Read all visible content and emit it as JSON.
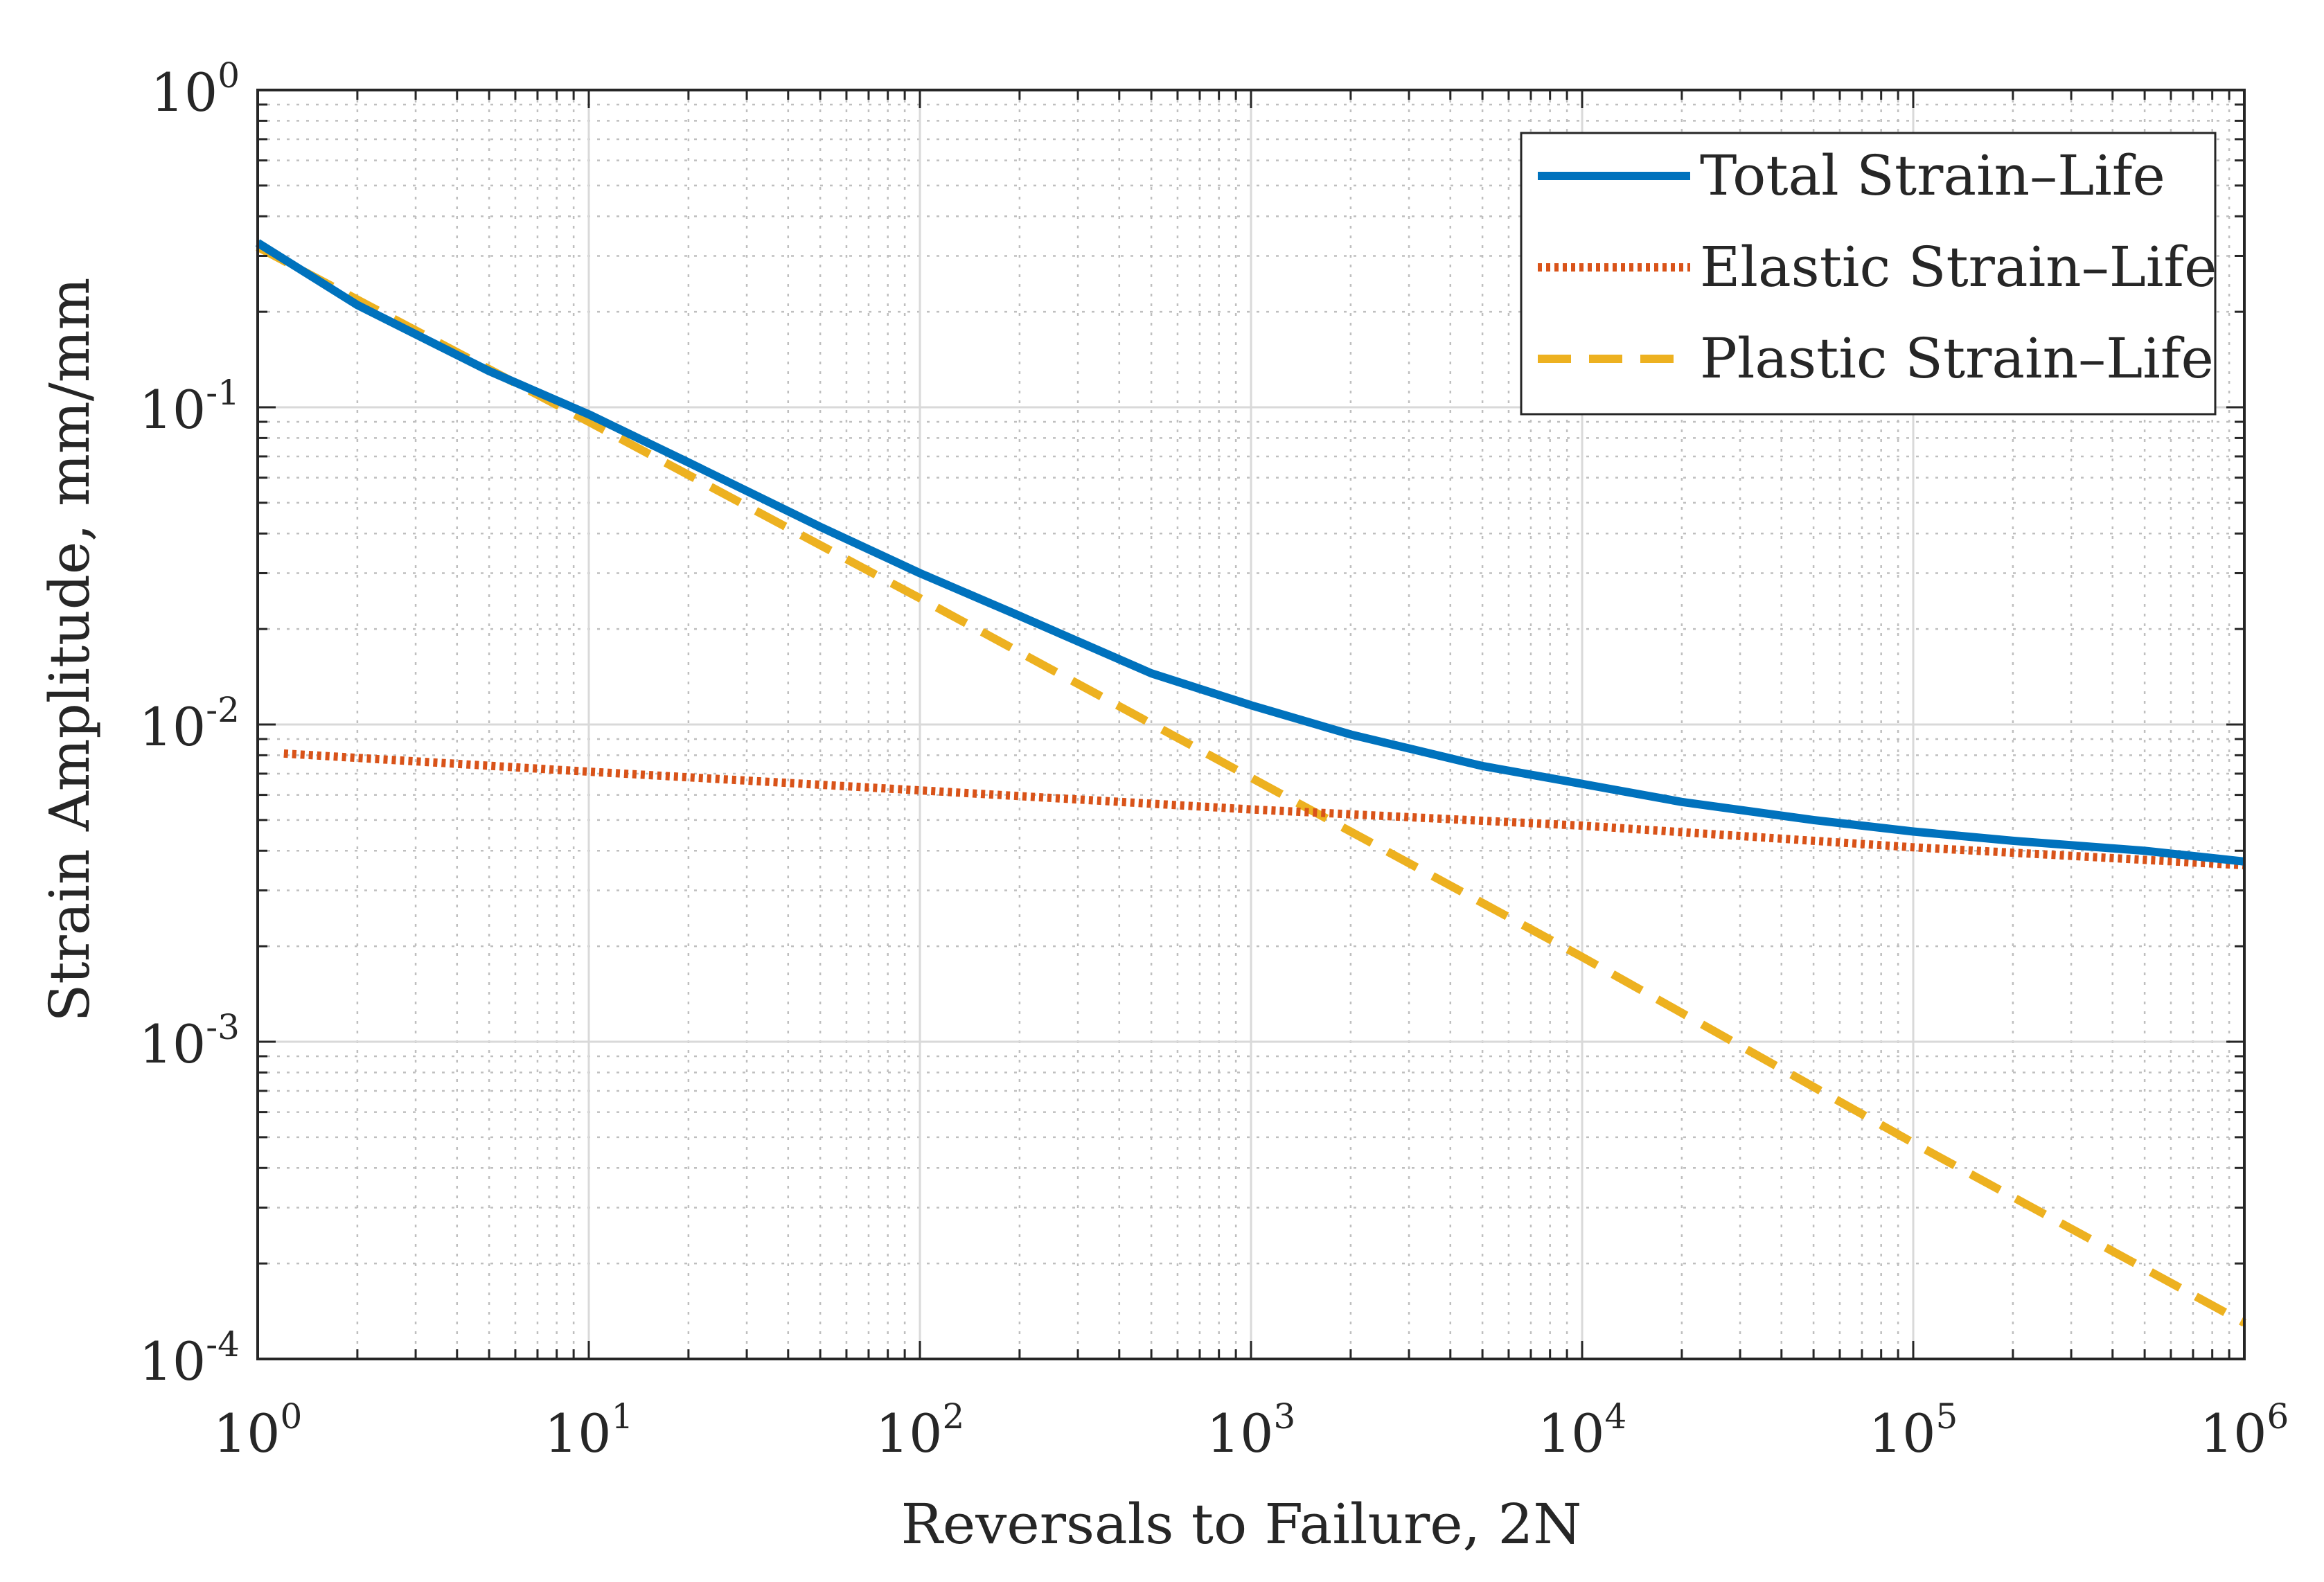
{
  "chart_data": {
    "type": "line",
    "xscale": "log",
    "yscale": "log",
    "xlim": [
      1,
      1000000
    ],
    "ylim": [
      0.0001,
      1
    ],
    "xlabel": "Reversals to Failure, 2N",
    "ylabel": "Strain Amplitude, mm/mm",
    "grid": true,
    "minor_grid": true,
    "legend_location": "top-right",
    "x_ticks": [
      {
        "value": 1,
        "base": "10",
        "exp": "0"
      },
      {
        "value": 10,
        "base": "10",
        "exp": "1"
      },
      {
        "value": 100,
        "base": "10",
        "exp": "2"
      },
      {
        "value": 1000,
        "base": "10",
        "exp": "3"
      },
      {
        "value": 10000,
        "base": "10",
        "exp": "4"
      },
      {
        "value": 100000,
        "base": "10",
        "exp": "5"
      },
      {
        "value": 1000000,
        "base": "10",
        "exp": "6"
      }
    ],
    "y_ticks": [
      {
        "value": 1,
        "base": "10",
        "exp": "0"
      },
      {
        "value": 0.1,
        "base": "10",
        "exp": "-1"
      },
      {
        "value": 0.01,
        "base": "10",
        "exp": "-2"
      },
      {
        "value": 0.001,
        "base": "10",
        "exp": "-3"
      },
      {
        "value": 0.0001,
        "base": "10",
        "exp": "-4"
      }
    ],
    "series": [
      {
        "name": "Total Strain–Life",
        "color": "#0072BD",
        "style": "solid",
        "x": [
          1,
          2,
          5,
          10,
          20,
          50,
          100,
          200,
          500,
          1000,
          2000,
          5000,
          10000,
          20000,
          50000,
          100000,
          200000,
          500000,
          1000000
        ],
        "y": [
          0.33,
          0.21,
          0.13,
          0.095,
          0.067,
          0.042,
          0.03,
          0.022,
          0.0145,
          0.0115,
          0.0093,
          0.0074,
          0.0065,
          0.0057,
          0.005,
          0.0046,
          0.0043,
          0.004,
          0.0037
        ]
      },
      {
        "name": "Elastic Strain–Life",
        "color": "#D95319",
        "style": "dotted",
        "x": [
          1.2,
          10,
          100,
          1000,
          10000,
          100000,
          1000000
        ],
        "y": [
          0.0081,
          0.0071,
          0.0062,
          0.0054,
          0.0048,
          0.0041,
          0.0036
        ]
      },
      {
        "name": "Plastic Strain–Life",
        "color": "#EDB120",
        "style": "dashed",
        "x": [
          1,
          10,
          100,
          1000,
          10000,
          100000,
          1000000
        ],
        "y": [
          0.32,
          0.09,
          0.025,
          0.0068,
          0.00185,
          0.00048,
          0.00013
        ]
      }
    ]
  }
}
